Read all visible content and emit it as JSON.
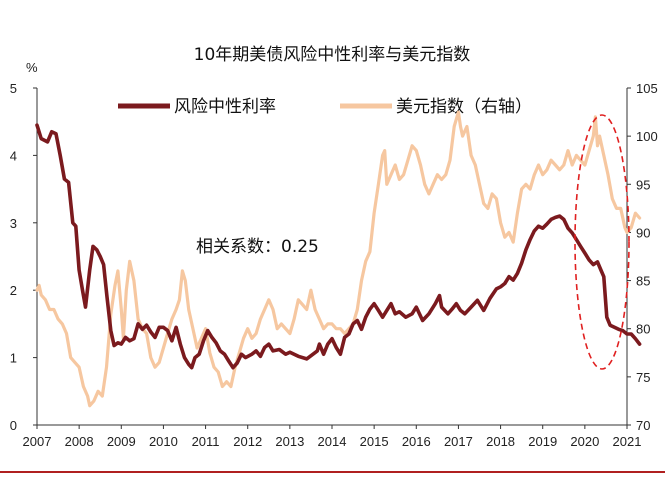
{
  "chart_data": {
    "type": "line",
    "title": "10年期美债风险中性利率与美元指数",
    "y_unit_label": "%",
    "annotation": "相关系数：0.25",
    "xlim": [
      2007,
      2021
    ],
    "ylim_left": [
      0,
      5
    ],
    "ylim_right": [
      70,
      105
    ],
    "x_tick_labels": [
      "2007",
      "2008",
      "2009",
      "2010",
      "2011",
      "2012",
      "2013",
      "2014",
      "2015",
      "2016",
      "2017",
      "2018",
      "2019",
      "2020",
      "2021"
    ],
    "y_left_tick_labels": [
      "0",
      "1",
      "2",
      "3",
      "4",
      "5"
    ],
    "y_right_tick_labels": [
      "70",
      "75",
      "80",
      "85",
      "90",
      "95",
      "100",
      "105"
    ],
    "grid": false,
    "legend_position": "top",
    "colors": {
      "rate": "#7b1a1e",
      "dxy": "#f6c7a0",
      "highlight": "#e02020",
      "baseline": "#b02020"
    },
    "series": [
      {
        "name": "风险中性利率",
        "axis": "left",
        "points": [
          [
            2007.0,
            4.45
          ],
          [
            2007.1,
            4.25
          ],
          [
            2007.25,
            4.2
          ],
          [
            2007.35,
            4.35
          ],
          [
            2007.45,
            4.32
          ],
          [
            2007.55,
            4.0
          ],
          [
            2007.65,
            3.65
          ],
          [
            2007.75,
            3.6
          ],
          [
            2007.85,
            3.0
          ],
          [
            2007.92,
            2.95
          ],
          [
            2008.0,
            2.3
          ],
          [
            2008.08,
            2.0
          ],
          [
            2008.15,
            1.75
          ],
          [
            2008.25,
            2.3
          ],
          [
            2008.33,
            2.65
          ],
          [
            2008.42,
            2.6
          ],
          [
            2008.5,
            2.5
          ],
          [
            2008.58,
            2.38
          ],
          [
            2008.66,
            1.9
          ],
          [
            2008.75,
            1.4
          ],
          [
            2008.83,
            1.18
          ],
          [
            2008.92,
            1.22
          ],
          [
            2009.0,
            1.2
          ],
          [
            2009.1,
            1.3
          ],
          [
            2009.2,
            1.25
          ],
          [
            2009.3,
            1.28
          ],
          [
            2009.4,
            1.5
          ],
          [
            2009.5,
            1.42
          ],
          [
            2009.6,
            1.48
          ],
          [
            2009.7,
            1.38
          ],
          [
            2009.8,
            1.3
          ],
          [
            2009.9,
            1.45
          ],
          [
            2010.0,
            1.45
          ],
          [
            2010.1,
            1.4
          ],
          [
            2010.2,
            1.25
          ],
          [
            2010.3,
            1.45
          ],
          [
            2010.4,
            1.2
          ],
          [
            2010.5,
            1.0
          ],
          [
            2010.6,
            0.9
          ],
          [
            2010.67,
            0.85
          ],
          [
            2010.75,
            1.0
          ],
          [
            2010.85,
            1.05
          ],
          [
            2010.95,
            1.25
          ],
          [
            2011.05,
            1.4
          ],
          [
            2011.15,
            1.3
          ],
          [
            2011.25,
            1.22
          ],
          [
            2011.35,
            1.1
          ],
          [
            2011.45,
            1.05
          ],
          [
            2011.55,
            0.95
          ],
          [
            2011.65,
            0.85
          ],
          [
            2011.75,
            0.92
          ],
          [
            2011.85,
            1.05
          ],
          [
            2011.95,
            1.0
          ],
          [
            2012.1,
            1.05
          ],
          [
            2012.2,
            1.1
          ],
          [
            2012.3,
            1.02
          ],
          [
            2012.4,
            1.15
          ],
          [
            2012.5,
            1.2
          ],
          [
            2012.6,
            1.1
          ],
          [
            2012.75,
            1.12
          ],
          [
            2012.9,
            1.05
          ],
          [
            2013.0,
            1.08
          ],
          [
            2013.2,
            1.02
          ],
          [
            2013.4,
            0.98
          ],
          [
            2013.55,
            1.05
          ],
          [
            2013.65,
            1.1
          ],
          [
            2013.7,
            1.2
          ],
          [
            2013.8,
            1.05
          ],
          [
            2013.9,
            1.2
          ],
          [
            2014.0,
            1.28
          ],
          [
            2014.1,
            1.15
          ],
          [
            2014.2,
            1.05
          ],
          [
            2014.3,
            1.3
          ],
          [
            2014.4,
            1.35
          ],
          [
            2014.5,
            1.5
          ],
          [
            2014.6,
            1.55
          ],
          [
            2014.7,
            1.42
          ],
          [
            2014.8,
            1.6
          ],
          [
            2014.9,
            1.72
          ],
          [
            2015.0,
            1.8
          ],
          [
            2015.1,
            1.7
          ],
          [
            2015.2,
            1.6
          ],
          [
            2015.3,
            1.7
          ],
          [
            2015.4,
            1.8
          ],
          [
            2015.5,
            1.65
          ],
          [
            2015.6,
            1.68
          ],
          [
            2015.75,
            1.6
          ],
          [
            2015.9,
            1.65
          ],
          [
            2016.0,
            1.75
          ],
          [
            2016.15,
            1.55
          ],
          [
            2016.3,
            1.65
          ],
          [
            2016.45,
            1.8
          ],
          [
            2016.55,
            1.92
          ],
          [
            2016.6,
            1.75
          ],
          [
            2016.75,
            1.65
          ],
          [
            2016.85,
            1.72
          ],
          [
            2016.95,
            1.8
          ],
          [
            2017.05,
            1.7
          ],
          [
            2017.15,
            1.65
          ],
          [
            2017.3,
            1.75
          ],
          [
            2017.45,
            1.85
          ],
          [
            2017.6,
            1.7
          ],
          [
            2017.75,
            1.88
          ],
          [
            2017.9,
            2.02
          ],
          [
            2018.0,
            2.05
          ],
          [
            2018.1,
            2.1
          ],
          [
            2018.2,
            2.2
          ],
          [
            2018.3,
            2.15
          ],
          [
            2018.4,
            2.25
          ],
          [
            2018.5,
            2.4
          ],
          [
            2018.6,
            2.6
          ],
          [
            2018.7,
            2.75
          ],
          [
            2018.8,
            2.88
          ],
          [
            2018.9,
            2.95
          ],
          [
            2019.0,
            2.92
          ],
          [
            2019.1,
            2.98
          ],
          [
            2019.2,
            3.05
          ],
          [
            2019.3,
            3.08
          ],
          [
            2019.4,
            3.1
          ],
          [
            2019.5,
            3.05
          ],
          [
            2019.6,
            2.92
          ],
          [
            2019.7,
            2.85
          ],
          [
            2019.8,
            2.75
          ],
          [
            2019.9,
            2.65
          ],
          [
            2020.0,
            2.55
          ],
          [
            2020.1,
            2.45
          ],
          [
            2020.2,
            2.38
          ],
          [
            2020.3,
            2.42
          ],
          [
            2020.38,
            2.3
          ],
          [
            2020.45,
            2.2
          ],
          [
            2020.52,
            1.6
          ],
          [
            2020.6,
            1.48
          ],
          [
            2020.7,
            1.45
          ],
          [
            2020.8,
            1.42
          ],
          [
            2020.9,
            1.4
          ],
          [
            2021.0,
            1.35
          ],
          [
            2021.1,
            1.35
          ],
          [
            2021.2,
            1.28
          ],
          [
            2021.3,
            1.2
          ]
        ]
      },
      {
        "name": "美元指数（右轴）",
        "axis": "right",
        "points": [
          [
            2007.0,
            84
          ],
          [
            2007.05,
            84.5
          ],
          [
            2007.1,
            83.5
          ],
          [
            2007.2,
            83
          ],
          [
            2007.3,
            82
          ],
          [
            2007.4,
            82
          ],
          [
            2007.5,
            81
          ],
          [
            2007.6,
            80.5
          ],
          [
            2007.7,
            79.5
          ],
          [
            2007.8,
            77
          ],
          [
            2007.9,
            76.5
          ],
          [
            2008.0,
            76
          ],
          [
            2008.1,
            74
          ],
          [
            2008.2,
            73
          ],
          [
            2008.25,
            72
          ],
          [
            2008.35,
            72.5
          ],
          [
            2008.45,
            73.5
          ],
          [
            2008.55,
            73
          ],
          [
            2008.65,
            76
          ],
          [
            2008.75,
            81.5
          ],
          [
            2008.85,
            84.5
          ],
          [
            2008.92,
            86
          ],
          [
            2009.0,
            82
          ],
          [
            2009.05,
            79
          ],
          [
            2009.12,
            84
          ],
          [
            2009.2,
            87
          ],
          [
            2009.3,
            85
          ],
          [
            2009.4,
            81
          ],
          [
            2009.5,
            80
          ],
          [
            2009.6,
            79.5
          ],
          [
            2009.7,
            77
          ],
          [
            2009.8,
            76
          ],
          [
            2009.9,
            76.5
          ],
          [
            2010.0,
            78
          ],
          [
            2010.1,
            79.5
          ],
          [
            2010.2,
            81
          ],
          [
            2010.3,
            82
          ],
          [
            2010.38,
            83
          ],
          [
            2010.45,
            86
          ],
          [
            2010.52,
            85
          ],
          [
            2010.6,
            82
          ],
          [
            2010.7,
            80
          ],
          [
            2010.8,
            78
          ],
          [
            2010.9,
            79
          ],
          [
            2011.0,
            80
          ],
          [
            2011.1,
            77.5
          ],
          [
            2011.2,
            76
          ],
          [
            2011.3,
            75.5
          ],
          [
            2011.4,
            74
          ],
          [
            2011.5,
            74.5
          ],
          [
            2011.6,
            74
          ],
          [
            2011.7,
            76
          ],
          [
            2011.8,
            77.5
          ],
          [
            2011.9,
            79
          ],
          [
            2012.0,
            80
          ],
          [
            2012.1,
            79
          ],
          [
            2012.2,
            79.5
          ],
          [
            2012.3,
            81
          ],
          [
            2012.4,
            82
          ],
          [
            2012.5,
            83
          ],
          [
            2012.6,
            82
          ],
          [
            2012.7,
            80
          ],
          [
            2012.8,
            80.5
          ],
          [
            2012.9,
            80
          ],
          [
            2013.0,
            79.5
          ],
          [
            2013.1,
            81
          ],
          [
            2013.2,
            83
          ],
          [
            2013.3,
            82.5
          ],
          [
            2013.4,
            82
          ],
          [
            2013.5,
            84
          ],
          [
            2013.6,
            82
          ],
          [
            2013.7,
            81
          ],
          [
            2013.8,
            80
          ],
          [
            2013.9,
            80.5
          ],
          [
            2014.0,
            80.5
          ],
          [
            2014.1,
            80
          ],
          [
            2014.2,
            80
          ],
          [
            2014.3,
            79.5
          ],
          [
            2014.4,
            80
          ],
          [
            2014.5,
            80.5
          ],
          [
            2014.6,
            82
          ],
          [
            2014.7,
            85
          ],
          [
            2014.8,
            87
          ],
          [
            2014.9,
            88
          ],
          [
            2015.0,
            92
          ],
          [
            2015.1,
            95
          ],
          [
            2015.2,
            98
          ],
          [
            2015.25,
            98.5
          ],
          [
            2015.3,
            95
          ],
          [
            2015.4,
            96
          ],
          [
            2015.5,
            97
          ],
          [
            2015.6,
            95.5
          ],
          [
            2015.7,
            96
          ],
          [
            2015.8,
            97.5
          ],
          [
            2015.9,
            99
          ],
          [
            2016.0,
            98.5
          ],
          [
            2016.1,
            97
          ],
          [
            2016.2,
            95
          ],
          [
            2016.3,
            94
          ],
          [
            2016.4,
            95
          ],
          [
            2016.5,
            96
          ],
          [
            2016.6,
            95.5
          ],
          [
            2016.7,
            96
          ],
          [
            2016.8,
            97.5
          ],
          [
            2016.9,
            101
          ],
          [
            2017.0,
            102.5
          ],
          [
            2017.05,
            101
          ],
          [
            2017.1,
            100
          ],
          [
            2017.2,
            101
          ],
          [
            2017.3,
            98
          ],
          [
            2017.4,
            97
          ],
          [
            2017.5,
            95
          ],
          [
            2017.6,
            93
          ],
          [
            2017.7,
            92.5
          ],
          [
            2017.8,
            94
          ],
          [
            2017.9,
            93.5
          ],
          [
            2018.0,
            91
          ],
          [
            2018.1,
            89.5
          ],
          [
            2018.2,
            90
          ],
          [
            2018.3,
            89
          ],
          [
            2018.4,
            92
          ],
          [
            2018.5,
            94.5
          ],
          [
            2018.6,
            95
          ],
          [
            2018.7,
            94.5
          ],
          [
            2018.8,
            96
          ],
          [
            2018.9,
            97
          ],
          [
            2019.0,
            96
          ],
          [
            2019.1,
            96.5
          ],
          [
            2019.2,
            97.5
          ],
          [
            2019.3,
            97
          ],
          [
            2019.4,
            96.5
          ],
          [
            2019.5,
            97
          ],
          [
            2019.6,
            98.5
          ],
          [
            2019.7,
            97
          ],
          [
            2019.8,
            98
          ],
          [
            2019.9,
            97.5
          ],
          [
            2020.0,
            97
          ],
          [
            2020.1,
            98.5
          ],
          [
            2020.2,
            100
          ],
          [
            2020.25,
            102
          ],
          [
            2020.3,
            99
          ],
          [
            2020.35,
            100
          ],
          [
            2020.45,
            98
          ],
          [
            2020.55,
            96
          ],
          [
            2020.65,
            93.5
          ],
          [
            2020.75,
            92.5
          ],
          [
            2020.85,
            92.5
          ],
          [
            2020.95,
            90.5
          ],
          [
            2021.0,
            90
          ],
          [
            2021.1,
            90.5
          ],
          [
            2021.2,
            92
          ],
          [
            2021.3,
            91.5
          ]
        ]
      }
    ]
  }
}
